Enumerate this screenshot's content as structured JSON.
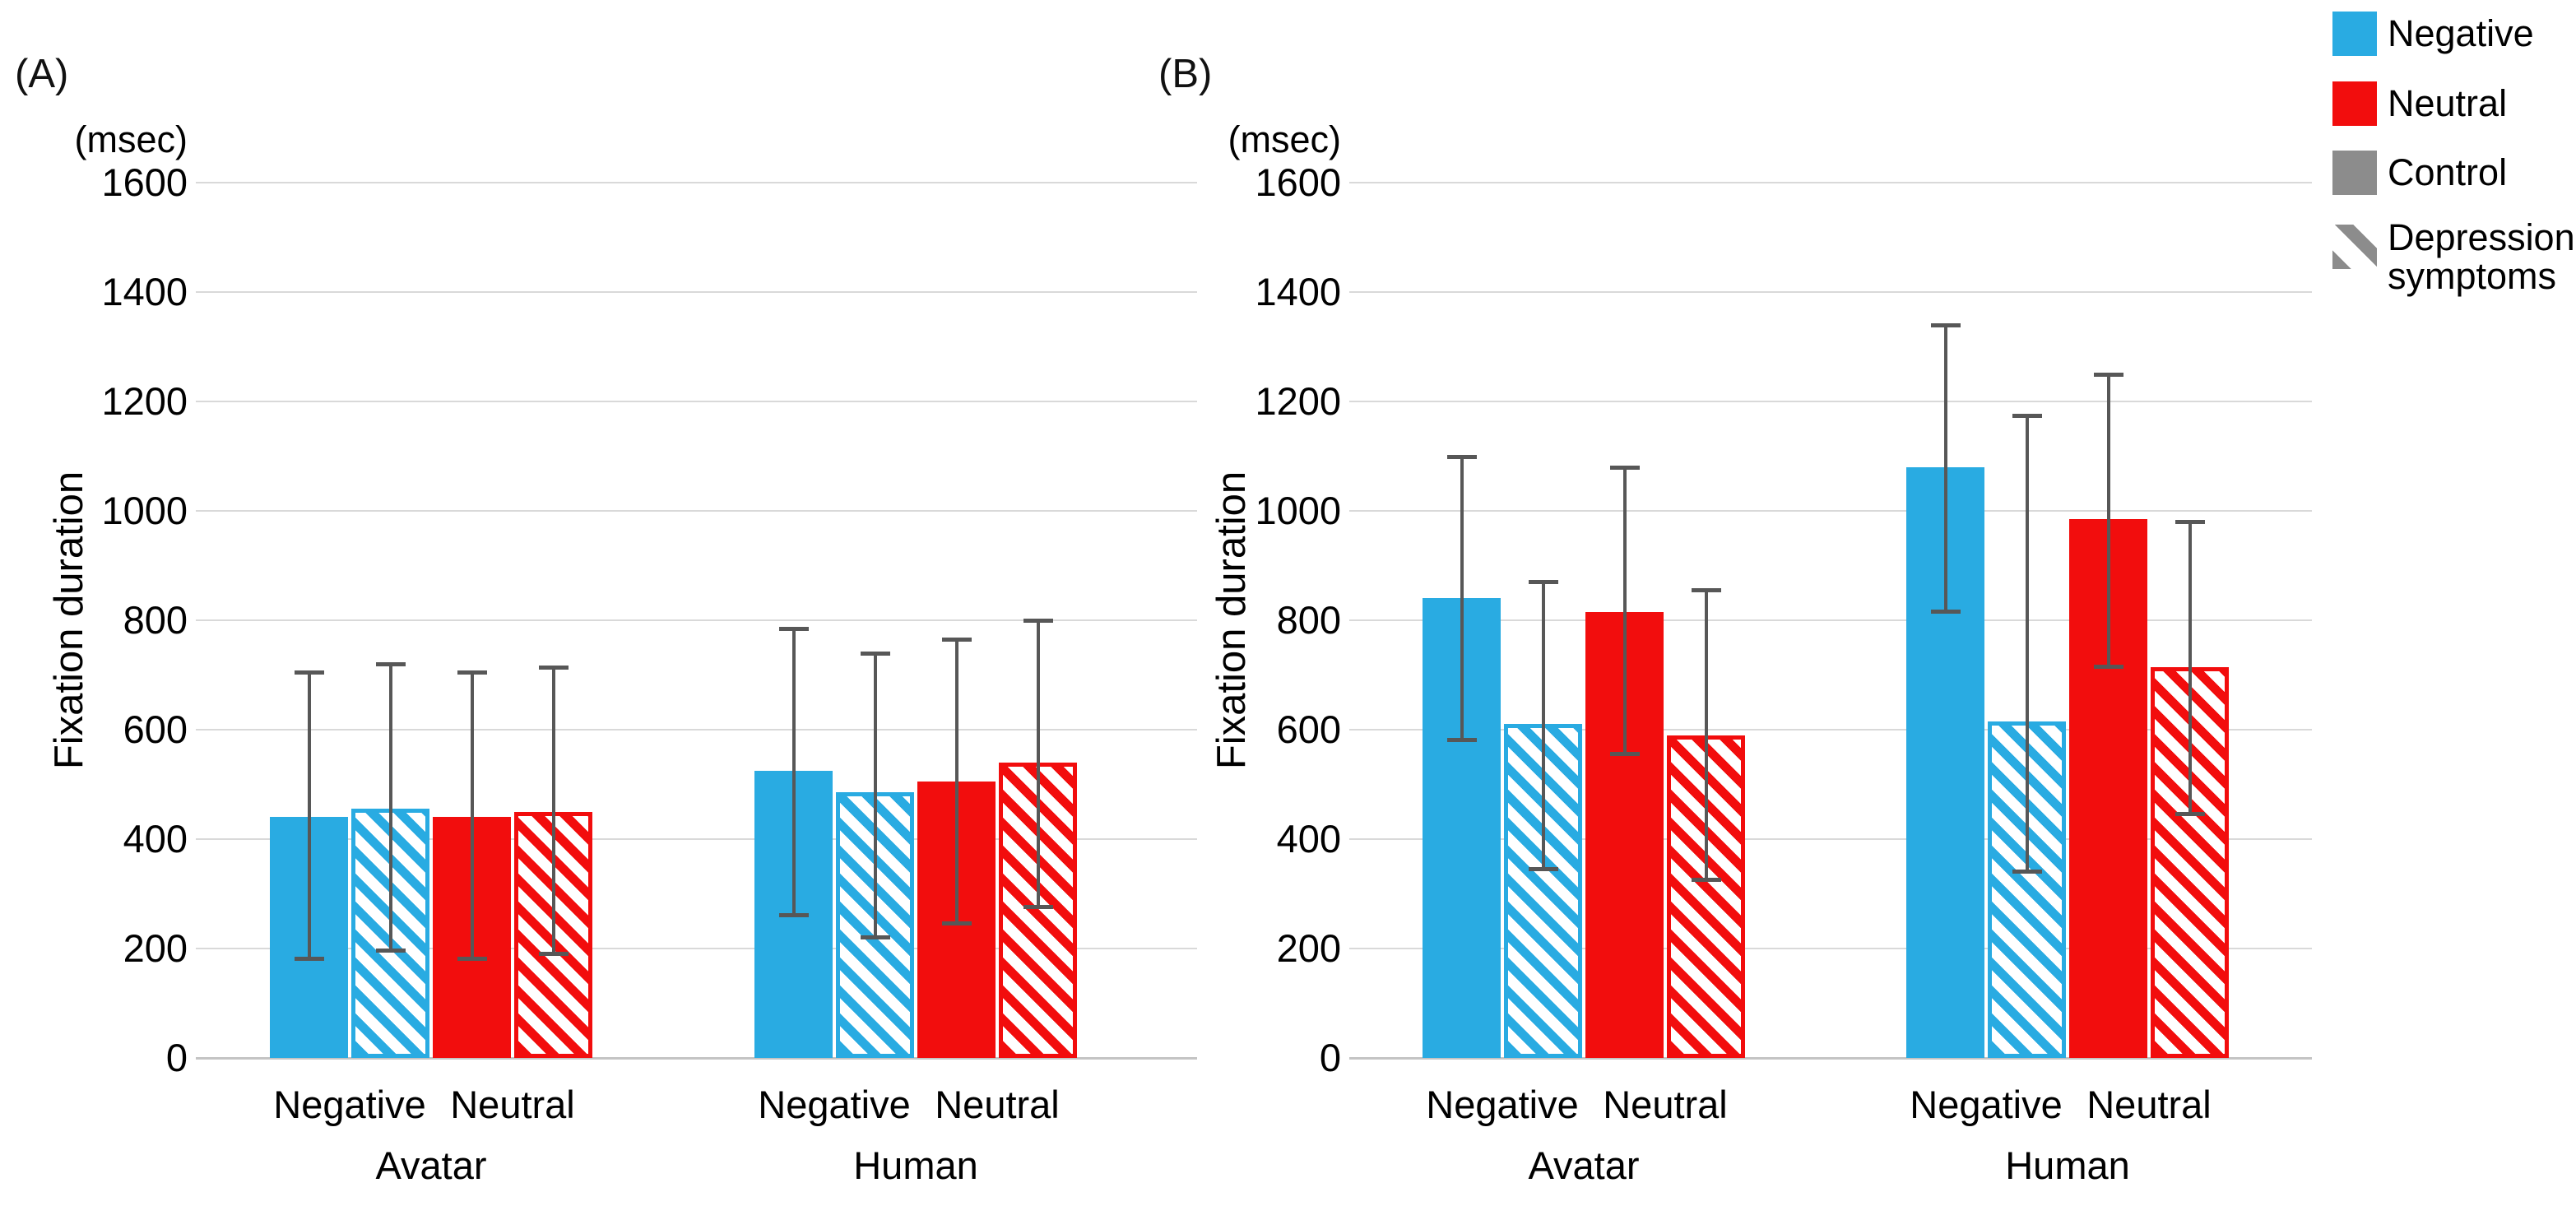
{
  "figure": {
    "unit_label": "(msec)",
    "y_axis_label": "Fixation duration",
    "y_ticks": [
      0,
      200,
      400,
      600,
      800,
      1000,
      1200,
      1400,
      1600
    ],
    "x_sub_labels": [
      "Negative",
      "Neutral"
    ],
    "legend": [
      {
        "label": "Negative",
        "swatch": "solid",
        "color_key": "negative"
      },
      {
        "label": "Neutral",
        "swatch": "solid",
        "color_key": "neutral"
      },
      {
        "label": "Control",
        "swatch": "solid",
        "color_key": "control"
      },
      {
        "label": "Depression symptoms",
        "swatch": "hatched",
        "color_key": "control"
      }
    ],
    "colors": {
      "negative": "#29abe2",
      "neutral": "#f20d0d",
      "control": "#8c8c8c",
      "error_bar": "#575757",
      "gridline": "#d9d9d9",
      "axis_line": "#c4c4c4"
    }
  },
  "chart_data": [
    {
      "panel": "A",
      "title": "(A)",
      "type": "bar",
      "ylabel": "Fixation duration",
      "y_unit": "(msec)",
      "ylim": [
        0,
        1600
      ],
      "grid": true,
      "groups": [
        {
          "label": "Avatar",
          "bars": [
            {
              "emotion": "Negative",
              "cohort": "Control",
              "value": 440,
              "err_low": 180,
              "err_high": 705
            },
            {
              "emotion": "Negative",
              "cohort": "Depression symptoms",
              "value": 455,
              "err_low": 195,
              "err_high": 720
            },
            {
              "emotion": "Neutral",
              "cohort": "Control",
              "value": 440,
              "err_low": 180,
              "err_high": 705
            },
            {
              "emotion": "Neutral",
              "cohort": "Depression symptoms",
              "value": 450,
              "err_low": 190,
              "err_high": 715
            }
          ]
        },
        {
          "label": "Human",
          "bars": [
            {
              "emotion": "Negative",
              "cohort": "Control",
              "value": 525,
              "err_low": 260,
              "err_high": 785
            },
            {
              "emotion": "Negative",
              "cohort": "Depression symptoms",
              "value": 485,
              "err_low": 220,
              "err_high": 740
            },
            {
              "emotion": "Neutral",
              "cohort": "Control",
              "value": 505,
              "err_low": 245,
              "err_high": 765
            },
            {
              "emotion": "Neutral",
              "cohort": "Depression symptoms",
              "value": 540,
              "err_low": 275,
              "err_high": 800
            }
          ]
        }
      ]
    },
    {
      "panel": "B",
      "title": "(B)",
      "type": "bar",
      "ylabel": "Fixation duration",
      "y_unit": "(msec)",
      "ylim": [
        0,
        1600
      ],
      "grid": true,
      "groups": [
        {
          "label": "Avatar",
          "bars": [
            {
              "emotion": "Negative",
              "cohort": "Control",
              "value": 840,
              "err_low": 580,
              "err_high": 1100
            },
            {
              "emotion": "Negative",
              "cohort": "Depression symptoms",
              "value": 610,
              "err_low": 345,
              "err_high": 870
            },
            {
              "emotion": "Neutral",
              "cohort": "Control",
              "value": 815,
              "err_low": 555,
              "err_high": 1080
            },
            {
              "emotion": "Neutral",
              "cohort": "Depression symptoms",
              "value": 590,
              "err_low": 325,
              "err_high": 855
            }
          ]
        },
        {
          "label": "Human",
          "bars": [
            {
              "emotion": "Negative",
              "cohort": "Control",
              "value": 1080,
              "err_low": 815,
              "err_high": 1340
            },
            {
              "emotion": "Negative",
              "cohort": "Depression symptoms",
              "value": 615,
              "err_low": 340,
              "err_high": 1175
            },
            {
              "emotion": "Neutral",
              "cohort": "Control",
              "value": 985,
              "err_low": 715,
              "err_high": 1250
            },
            {
              "emotion": "Neutral",
              "cohort": "Depression symptoms",
              "value": 715,
              "err_low": 445,
              "err_high": 980
            }
          ]
        }
      ]
    }
  ]
}
